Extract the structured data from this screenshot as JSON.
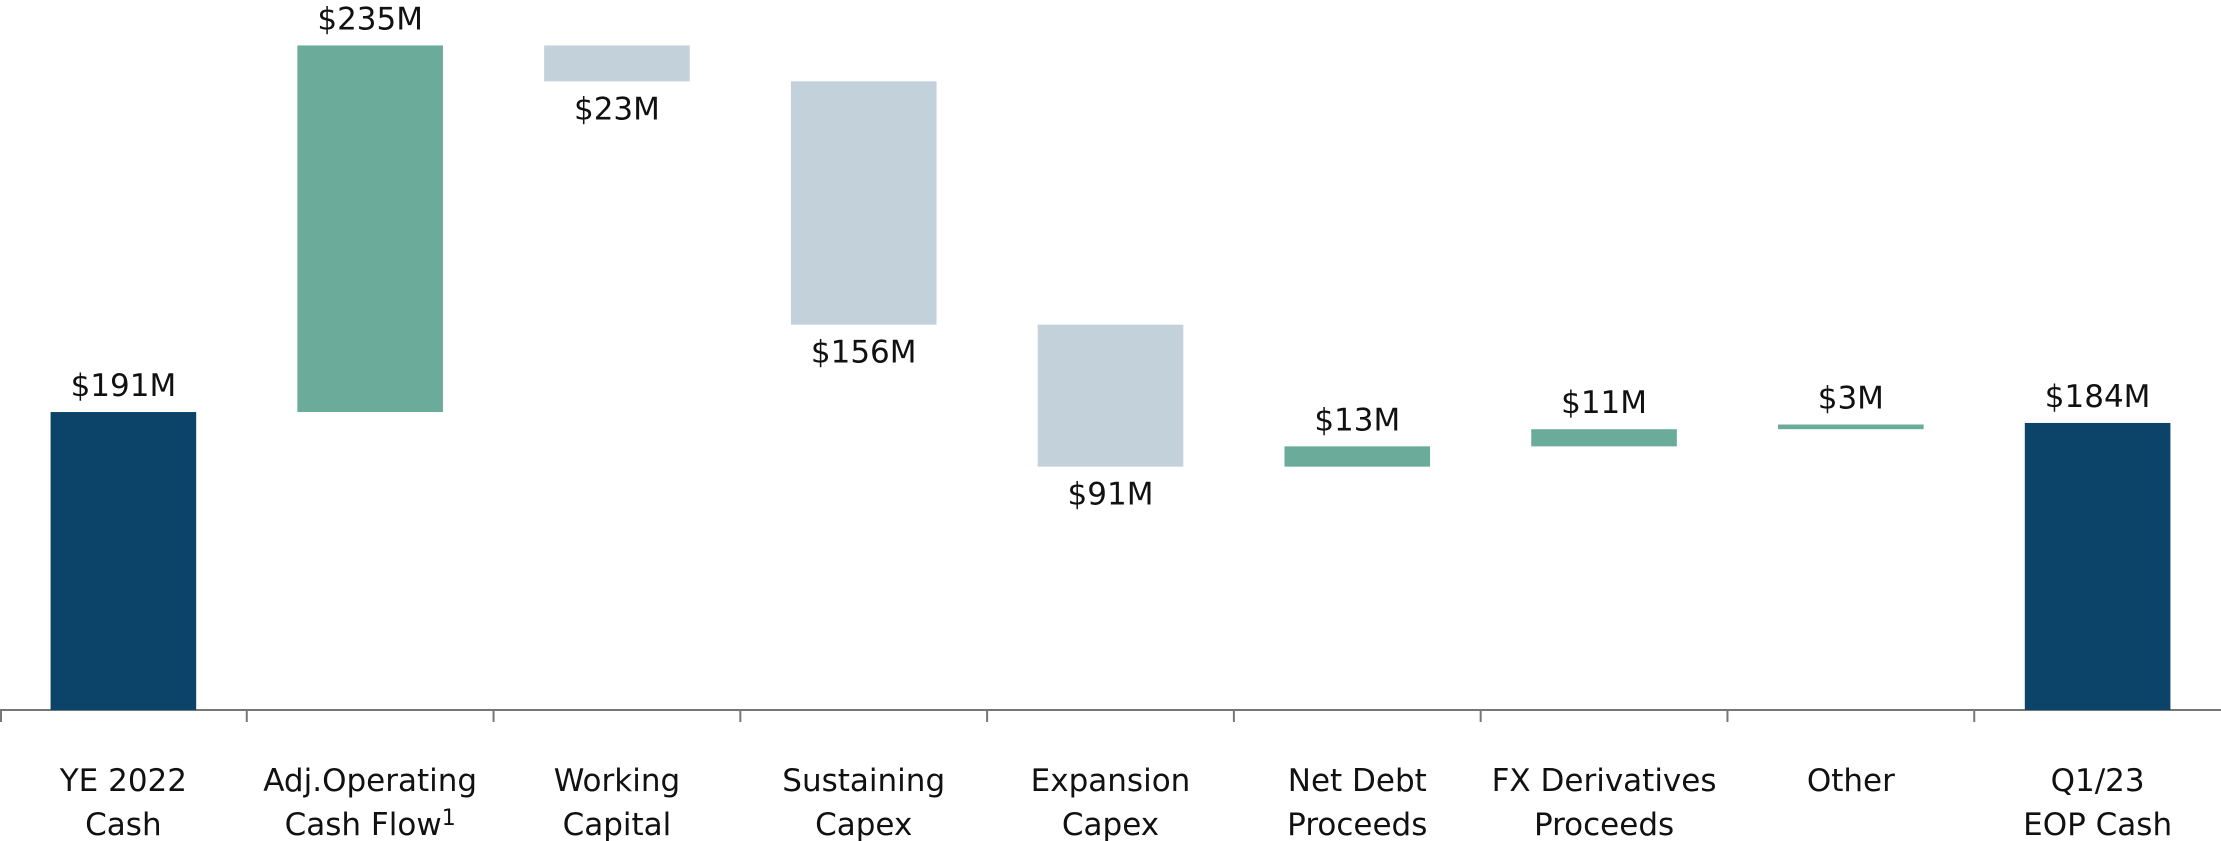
{
  "chart_data": {
    "type": "waterfall",
    "categories": [
      [
        "YE 2022",
        "Cash"
      ],
      [
        "Adj.Operating",
        "Cash Flow"
      ],
      [
        "Working",
        "Capital"
      ],
      [
        "Sustaining",
        "Capex"
      ],
      [
        "Expansion",
        "Capex"
      ],
      [
        "Net Debt",
        "Proceeds"
      ],
      [
        "FX Derivatives",
        "Proceeds"
      ],
      [
        "Other"
      ],
      [
        "Q1/23",
        "EOP Cash"
      ]
    ],
    "footnotes": [
      {
        "category": 1,
        "marker": "1"
      }
    ],
    "values": [
      191,
      235,
      23,
      156,
      91,
      13,
      11,
      3,
      184
    ],
    "value_labels": [
      "$191M",
      "$235M",
      "$23M",
      "$156M",
      "$91M",
      "$13M",
      "$11M",
      "$3M",
      "$184M"
    ],
    "measures": [
      "total",
      "increase",
      "decrease",
      "decrease",
      "decrease",
      "increase",
      "increase",
      "increase",
      "total"
    ],
    "colors": {
      "total": "#0b4468",
      "increase": "#6aab9a",
      "decrease": "#c3d1da"
    },
    "ylim": [
      0,
      450
    ]
  }
}
